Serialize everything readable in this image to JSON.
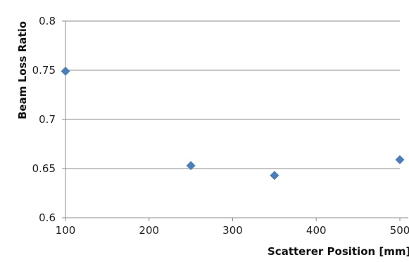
{
  "chart_data": {
    "type": "scatter",
    "xlabel": "Scatterer Position [mm]",
    "ylabel": "Beam Loss Ratio",
    "xlim": [
      100,
      500
    ],
    "ylim": [
      0.6,
      0.8
    ],
    "xticks": [
      "100",
      "200",
      "300",
      "400",
      "500"
    ],
    "yticks": [
      "0.6",
      "0.65",
      "0.7",
      "0.75",
      "0.8"
    ],
    "grid": "horizontal",
    "marker": "diamond",
    "color": "#4a7ebb",
    "series": [
      {
        "x": [
          100,
          250,
          350,
          500
        ],
        "y": [
          0.749,
          0.653,
          0.643,
          0.659
        ]
      }
    ]
  }
}
